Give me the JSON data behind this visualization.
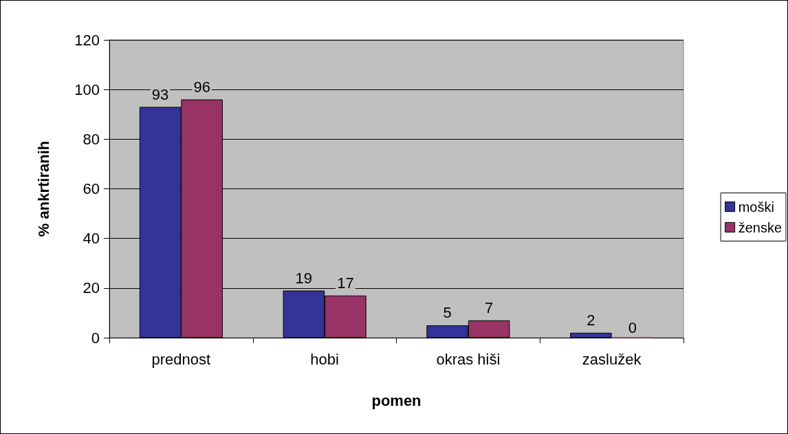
{
  "chart_data": {
    "type": "bar",
    "xlabel": "pomen",
    "ylabel": "% ankrtiranih",
    "categories": [
      "prednost",
      "hobi",
      "okras hiši",
      "zaslužek"
    ],
    "series": [
      {
        "name": "moški",
        "color": "#333399",
        "values": [
          93,
          19,
          5,
          2
        ]
      },
      {
        "name": "ženske",
        "color": "#993366",
        "values": [
          96,
          17,
          7,
          0
        ]
      }
    ],
    "ylim": [
      0,
      120
    ],
    "yticks": [
      0,
      20,
      40,
      60,
      80,
      100,
      120
    ],
    "grid": "y",
    "legend": "right",
    "data_labels": true
  }
}
